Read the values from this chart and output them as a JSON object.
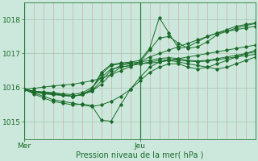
{
  "background_color": "#cce8dc",
  "plot_bg_color": "#cce8dc",
  "line_color": "#1a6b2a",
  "xlabel": "Pression niveau de la mer( hPa )",
  "xlabel_color": "#1a6b2a",
  "yticks": [
    1015,
    1016,
    1017,
    1018
  ],
  "ylim": [
    1014.5,
    1018.5
  ],
  "xlim": [
    0,
    48
  ],
  "xtick_positions": [
    0,
    24
  ],
  "xtick_labels": [
    "Mer",
    "Jeu"
  ],
  "vline_positions": [
    0,
    24
  ],
  "num_vgrid": 24,
  "series": [
    {
      "x": [
        0,
        2,
        4,
        6,
        8,
        10,
        12,
        14,
        16,
        18,
        20,
        22,
        24,
        26,
        28,
        30,
        32,
        34,
        36,
        38,
        40,
        42,
        44,
        46,
        48
      ],
      "y": [
        1015.95,
        1015.98,
        1016.02,
        1016.05,
        1016.08,
        1016.1,
        1016.15,
        1016.2,
        1016.28,
        1016.38,
        1016.5,
        1016.62,
        1016.76,
        1016.9,
        1017.0,
        1017.1,
        1017.2,
        1017.3,
        1017.4,
        1017.5,
        1017.6,
        1017.7,
        1017.8,
        1017.85,
        1017.9
      ]
    },
    {
      "x": [
        0,
        2,
        4,
        6,
        8,
        10,
        12,
        14,
        16,
        18,
        20,
        22,
        24,
        26,
        28,
        30,
        32,
        34,
        36,
        38,
        40,
        42,
        44,
        46,
        48
      ],
      "y": [
        1015.95,
        1015.85,
        1015.75,
        1015.65,
        1015.6,
        1015.55,
        1015.5,
        1015.45,
        1015.5,
        1015.6,
        1015.75,
        1015.95,
        1016.2,
        1016.45,
        1016.6,
        1016.7,
        1016.7,
        1016.6,
        1016.55,
        1016.6,
        1016.7,
        1016.8,
        1016.9,
        1017.0,
        1017.1
      ]
    },
    {
      "x": [
        0,
        2,
        4,
        6,
        8,
        10,
        12,
        14,
        16,
        18,
        20,
        22,
        24,
        26,
        28,
        30,
        32,
        34,
        36,
        38,
        40,
        42,
        44,
        46,
        48
      ],
      "y": [
        1015.95,
        1015.82,
        1015.7,
        1015.6,
        1015.55,
        1015.5,
        1015.52,
        1015.48,
        1015.05,
        1015.02,
        1015.5,
        1015.95,
        1016.3,
        1016.6,
        1016.75,
        1016.8,
        1016.75,
        1016.7,
        1016.65,
        1016.6,
        1016.55,
        1016.6,
        1016.7,
        1016.8,
        1016.9
      ]
    },
    {
      "x": [
        0,
        2,
        4,
        6,
        8,
        10,
        12,
        14,
        16,
        18,
        20,
        22,
        24,
        26,
        28,
        30,
        32,
        34,
        36,
        38,
        40,
        42,
        44,
        46,
        48
      ],
      "y": [
        1015.95,
        1015.88,
        1015.82,
        1015.8,
        1015.78,
        1015.75,
        1015.8,
        1015.9,
        1016.1,
        1016.4,
        1016.6,
        1016.65,
        1016.7,
        1016.72,
        1016.75,
        1016.8,
        1016.85,
        1016.9,
        1016.95,
        1017.0,
        1017.05,
        1017.1,
        1017.15,
        1017.2,
        1017.25
      ]
    },
    {
      "x": [
        0,
        2,
        4,
        6,
        8,
        10,
        12,
        14,
        16,
        18,
        20,
        22,
        24,
        26,
        28,
        30,
        32,
        34,
        36,
        38,
        40,
        42,
        44,
        46,
        48
      ],
      "y": [
        1015.95,
        1015.9,
        1015.88,
        1015.85,
        1015.8,
        1015.75,
        1015.8,
        1015.9,
        1016.2,
        1016.5,
        1016.65,
        1016.7,
        1016.75,
        1016.8,
        1016.85,
        1016.88,
        1016.85,
        1016.8,
        1016.78,
        1016.8,
        1016.85,
        1016.9,
        1016.95,
        1017.0,
        1017.05
      ]
    },
    {
      "x": [
        0,
        2,
        4,
        6,
        8,
        10,
        12,
        14,
        16,
        18,
        20,
        22,
        24,
        26,
        28,
        30,
        32,
        34,
        36,
        38,
        40,
        42,
        44,
        46,
        48
      ],
      "y": [
        1015.95,
        1015.9,
        1015.85,
        1015.85,
        1015.82,
        1015.8,
        1015.85,
        1016.0,
        1016.3,
        1016.55,
        1016.6,
        1016.65,
        1016.7,
        1016.75,
        1016.8,
        1016.82,
        1016.8,
        1016.78,
        1016.76,
        1016.78,
        1016.82,
        1016.86,
        1016.9,
        1016.94,
        1016.98
      ]
    },
    {
      "x": [
        0,
        2,
        4,
        6,
        8,
        10,
        12,
        14,
        16,
        18,
        20,
        22,
        24,
        26,
        28,
        30,
        32,
        34,
        36,
        38,
        40,
        42,
        44,
        46,
        48
      ],
      "y": [
        1015.95,
        1015.88,
        1015.85,
        1015.8,
        1015.78,
        1015.75,
        1015.8,
        1015.95,
        1016.4,
        1016.65,
        1016.7,
        1016.72,
        1016.75,
        1017.1,
        1017.45,
        1017.5,
        1017.3,
        1017.15,
        1017.2,
        1017.35,
        1017.55,
        1017.65,
        1017.75,
        1017.82,
        1017.88
      ]
    },
    {
      "x": [
        0,
        2,
        4,
        6,
        8,
        10,
        12,
        14,
        16,
        18,
        20,
        22,
        24,
        26,
        28,
        30,
        32,
        34,
        36,
        38,
        40,
        42,
        44,
        46,
        48
      ],
      "y": [
        1015.95,
        1015.88,
        1015.85,
        1015.82,
        1015.78,
        1015.75,
        1015.8,
        1015.95,
        1016.45,
        1016.68,
        1016.72,
        1016.75,
        1016.8,
        1017.15,
        1018.05,
        1017.6,
        1017.15,
        1017.2,
        1017.35,
        1017.5,
        1017.6,
        1017.65,
        1017.7,
        1017.75,
        1017.8
      ]
    }
  ]
}
